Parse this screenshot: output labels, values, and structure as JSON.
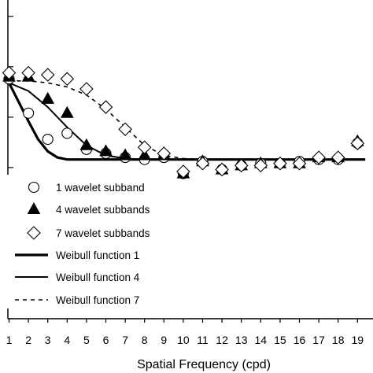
{
  "chart_data": {
    "type": "scatter",
    "title": "",
    "xlabel": "Spatial Frequency (cpd)",
    "ylabel": "",
    "x_ticks": [
      1,
      2,
      3,
      4,
      5,
      6,
      7,
      8,
      9,
      10,
      11,
      12,
      13,
      14,
      15,
      16,
      17,
      18,
      19
    ],
    "xlim": [
      1,
      19.4
    ],
    "ylim": [
      0,
      1.55
    ],
    "y_tick_values": [
      0,
      0.25,
      0.5,
      0.75,
      1.0,
      1.25,
      1.5
    ],
    "grid": false,
    "legend_position": "lower-left",
    "series": [
      {
        "name": "1 wavelet subband",
        "kind": "points",
        "marker": "circle",
        "x": [
          1,
          2,
          3,
          4,
          5,
          6,
          7,
          8,
          9,
          10,
          11,
          12,
          13,
          14,
          15,
          16,
          17,
          18,
          19
        ],
        "y": [
          1.19,
          1.02,
          0.89,
          0.92,
          0.84,
          0.82,
          0.8,
          0.79,
          0.8,
          0.72,
          0.78,
          0.74,
          0.76,
          0.77,
          0.77,
          0.78,
          0.79,
          0.79,
          0.87
        ]
      },
      {
        "name": "4 wavelet subbands",
        "kind": "points",
        "marker": "triangle",
        "x": [
          1,
          2,
          3,
          4,
          5,
          6,
          7,
          8,
          9,
          10,
          11,
          12,
          13,
          14,
          15,
          16,
          17,
          18,
          19
        ],
        "y": [
          1.2,
          1.2,
          1.09,
          1.02,
          0.86,
          0.83,
          0.81,
          0.81,
          0.81,
          0.72,
          0.78,
          0.74,
          0.76,
          0.77,
          0.77,
          0.77,
          0.8,
          0.8,
          0.88
        ]
      },
      {
        "name": "7 wavelet subbands",
        "kind": "points",
        "marker": "diamond",
        "x": [
          1,
          2,
          3,
          4,
          5,
          6,
          7,
          8,
          9,
          10,
          11,
          12,
          13,
          14,
          15,
          16,
          17,
          18,
          19
        ],
        "y": [
          1.22,
          1.22,
          1.21,
          1.19,
          1.14,
          1.05,
          0.94,
          0.85,
          0.82,
          0.73,
          0.77,
          0.74,
          0.76,
          0.76,
          0.77,
          0.77,
          0.8,
          0.8,
          0.87
        ]
      },
      {
        "name": "Weibull function 1",
        "kind": "line",
        "style": "thick",
        "x": [
          1,
          2,
          2.5,
          3,
          3.5,
          4,
          5,
          8,
          12,
          19.4
        ],
        "y": [
          1.17,
          0.98,
          0.89,
          0.83,
          0.8,
          0.79,
          0.79,
          0.79,
          0.79,
          0.79
        ]
      },
      {
        "name": "Weibull function 4",
        "kind": "line",
        "style": "thin",
        "x": [
          1,
          2,
          3,
          4,
          5,
          6,
          7,
          8,
          9,
          19.4
        ],
        "y": [
          1.17,
          1.13,
          1.05,
          0.95,
          0.86,
          0.81,
          0.795,
          0.79,
          0.79,
          0.79
        ]
      },
      {
        "name": "Weibull function 7",
        "kind": "line",
        "style": "dashed",
        "x": [
          1,
          2,
          3,
          4,
          5,
          6,
          7,
          8,
          9,
          10,
          11,
          19.4
        ],
        "y": [
          1.18,
          1.18,
          1.17,
          1.15,
          1.11,
          1.04,
          0.95,
          0.86,
          0.81,
          0.795,
          0.79,
          0.79
        ]
      }
    ]
  }
}
